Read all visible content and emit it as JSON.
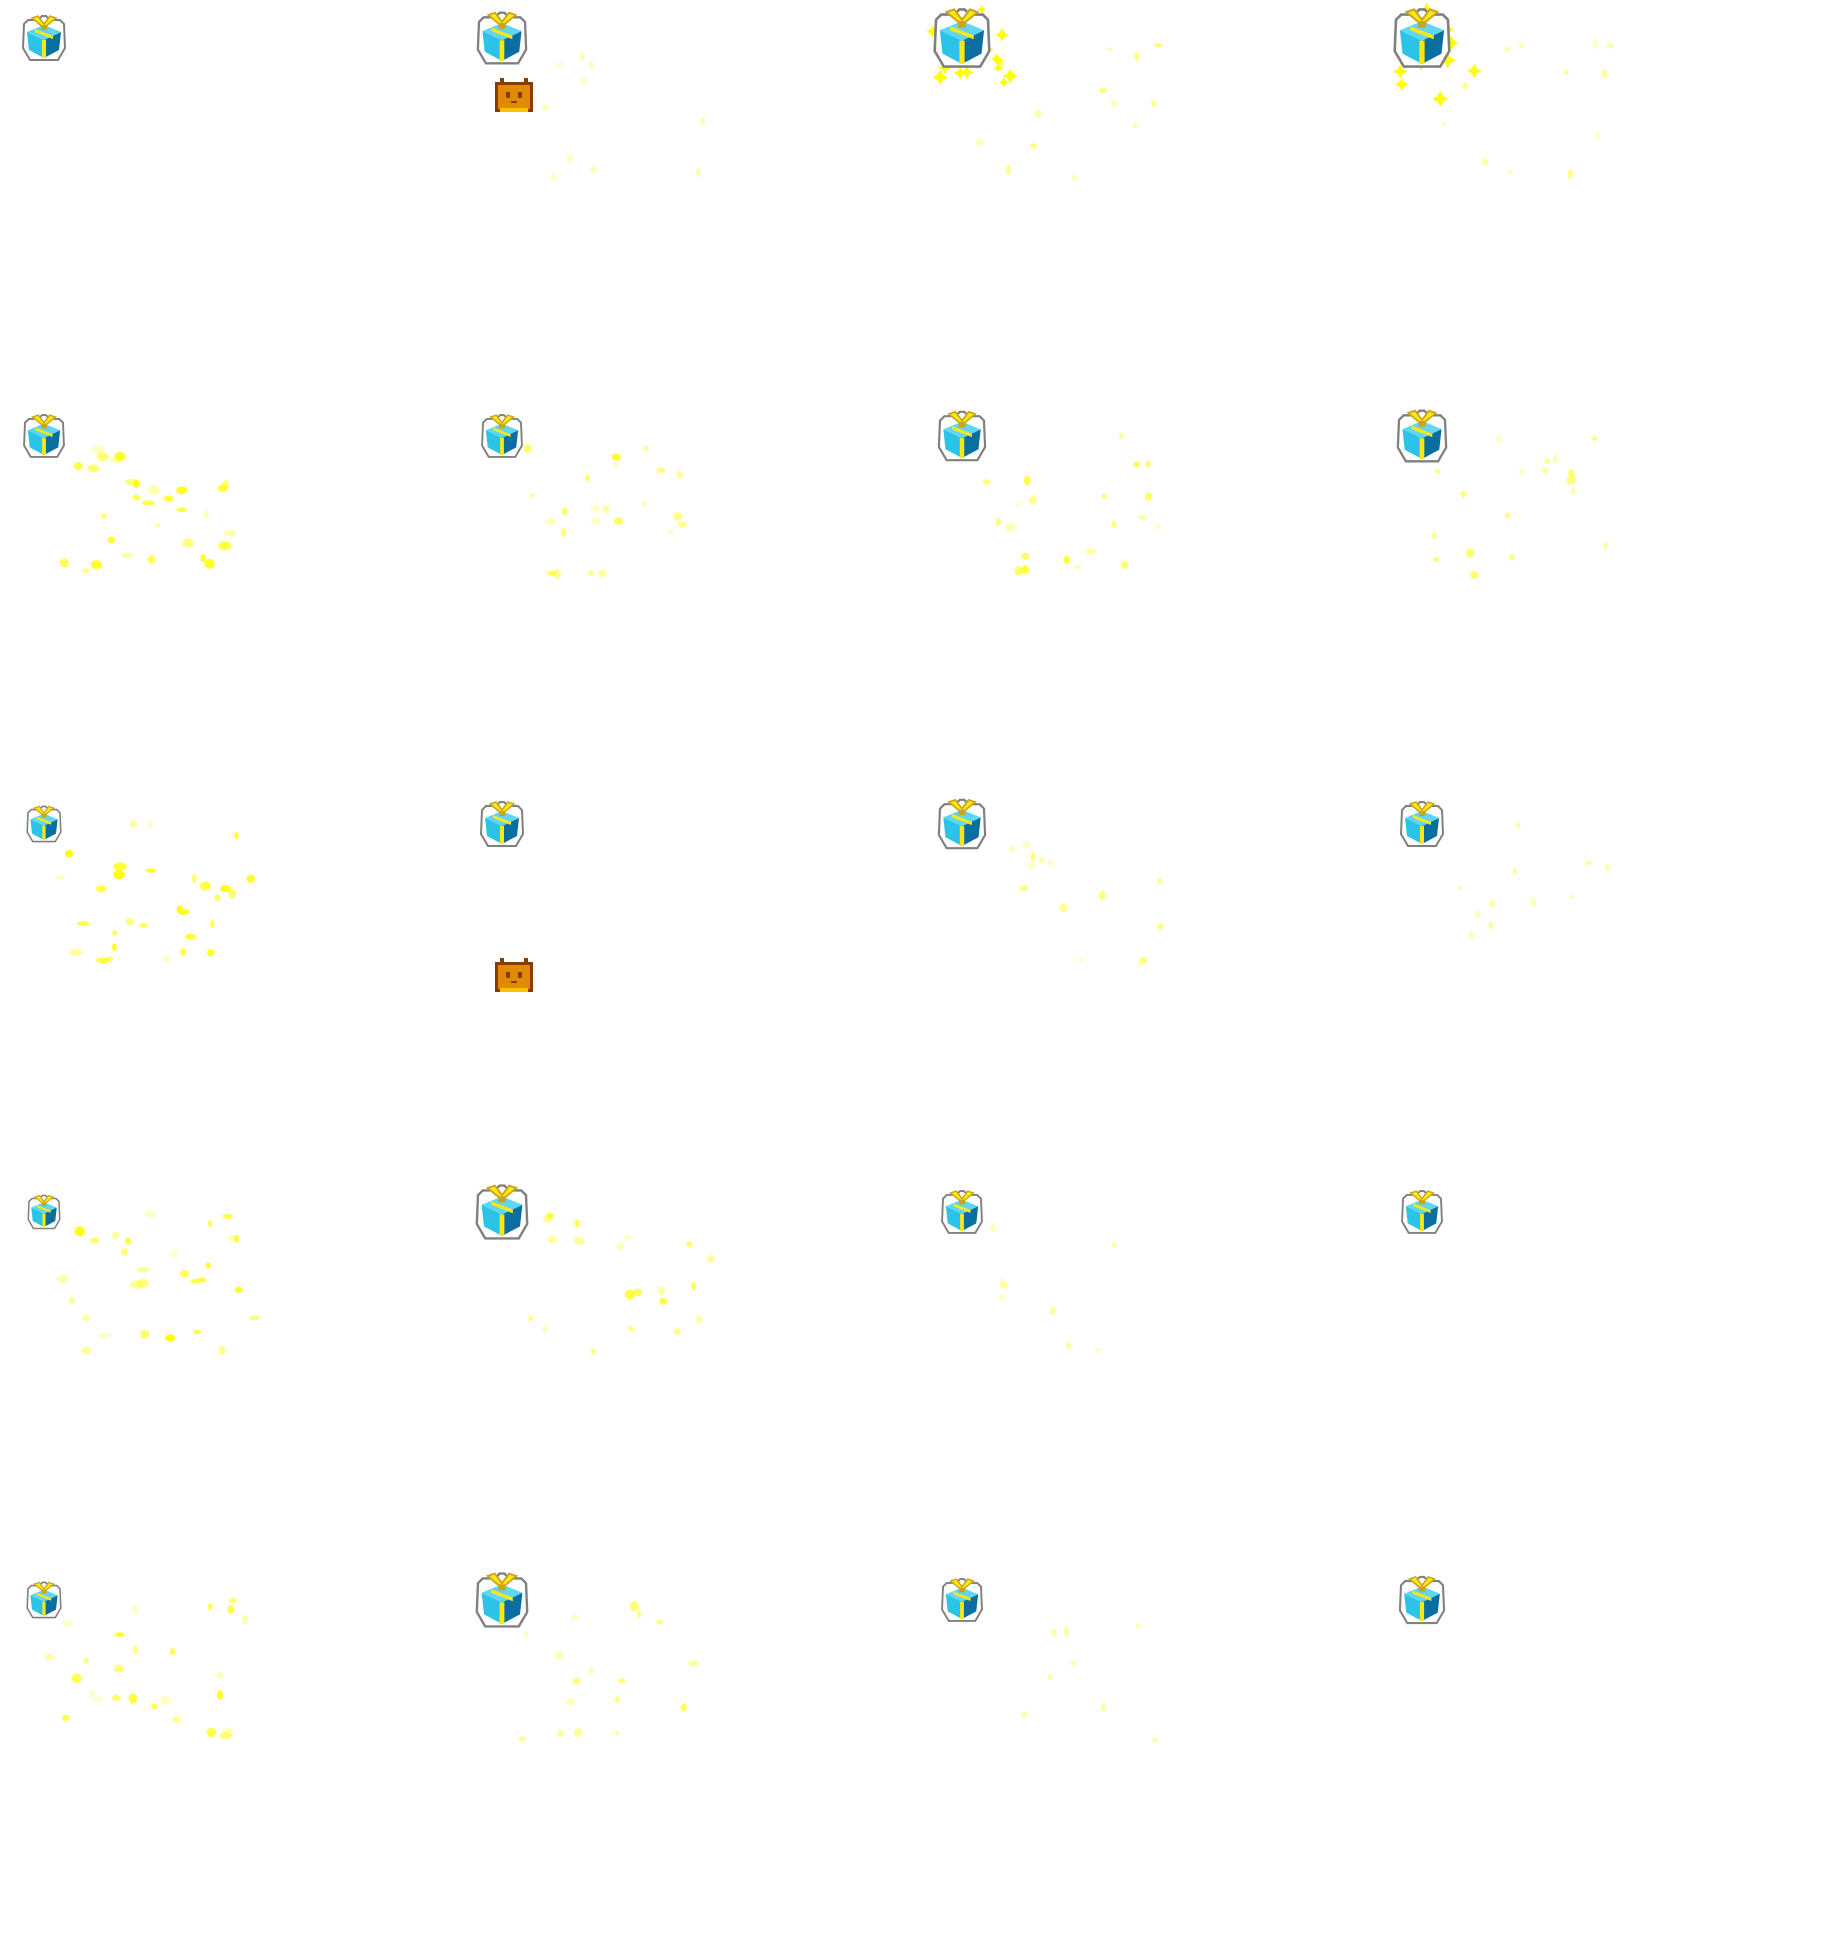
{
  "sprite_sheet": {
    "rows": 5,
    "columns": 4,
    "colors": {
      "background": "#ffffff",
      "box_cyan": "#2bc3e8",
      "box_dark": "#0a6fa0",
      "ribbon_yellow": "#ffe812",
      "ribbon_gold": "#caa41a",
      "outline": "#808080",
      "sparkle_yellow": "#ffff00",
      "robot_orange": "#e08a00",
      "robot_dark": "#8a3b00"
    },
    "icons": {
      "gift": "gift-box-icon",
      "sparkle": "sparkle-particle-icon",
      "robot": "robot-face-icon"
    },
    "frames": [
      {
        "index": 1,
        "gift_scale": 1.0,
        "sparkle_level": 0.0,
        "burst": false,
        "robot": false
      },
      {
        "index": 2,
        "gift_scale": 1.15,
        "sparkle_level": 0.35,
        "burst": false,
        "robot": true
      },
      {
        "index": 3,
        "gift_scale": 1.3,
        "sparkle_level": 0.45,
        "burst": true,
        "robot": false
      },
      {
        "index": 4,
        "gift_scale": 1.3,
        "sparkle_level": 0.4,
        "burst": true,
        "robot": false
      },
      {
        "index": 5,
        "gift_scale": 0.95,
        "sparkle_level": 1.0,
        "burst": false,
        "robot": false
      },
      {
        "index": 6,
        "gift_scale": 0.95,
        "sparkle_level": 0.75,
        "burst": false,
        "robot": false
      },
      {
        "index": 7,
        "gift_scale": 1.1,
        "sparkle_level": 0.7,
        "burst": false,
        "robot": false
      },
      {
        "index": 8,
        "gift_scale": 1.15,
        "sparkle_level": 0.6,
        "burst": false,
        "robot": false
      },
      {
        "index": 9,
        "gift_scale": 0.8,
        "sparkle_level": 1.0,
        "burst": false,
        "robot": false
      },
      {
        "index": 10,
        "gift_scale": 1.0,
        "sparkle_level": 0.0,
        "burst": false,
        "robot": true
      },
      {
        "index": 11,
        "gift_scale": 1.1,
        "sparkle_level": 0.45,
        "burst": false,
        "robot": false
      },
      {
        "index": 12,
        "gift_scale": 1.0,
        "sparkle_level": 0.35,
        "burst": false,
        "robot": false
      },
      {
        "index": 13,
        "gift_scale": 0.75,
        "sparkle_level": 0.95,
        "burst": false,
        "robot": false
      },
      {
        "index": 14,
        "gift_scale": 1.2,
        "sparkle_level": 0.7,
        "burst": false,
        "robot": false
      },
      {
        "index": 15,
        "gift_scale": 0.95,
        "sparkle_level": 0.25,
        "burst": false,
        "robot": false
      },
      {
        "index": 16,
        "gift_scale": 0.95,
        "sparkle_level": 0.0,
        "burst": false,
        "robot": false
      },
      {
        "index": 17,
        "gift_scale": 0.8,
        "sparkle_level": 0.85,
        "burst": false,
        "robot": false
      },
      {
        "index": 18,
        "gift_scale": 1.2,
        "sparkle_level": 0.55,
        "burst": false,
        "robot": false
      },
      {
        "index": 19,
        "gift_scale": 0.95,
        "sparkle_level": 0.25,
        "burst": false,
        "robot": false
      },
      {
        "index": 20,
        "gift_scale": 1.05,
        "sparkle_level": 0.0,
        "burst": false,
        "robot": false
      }
    ]
  }
}
